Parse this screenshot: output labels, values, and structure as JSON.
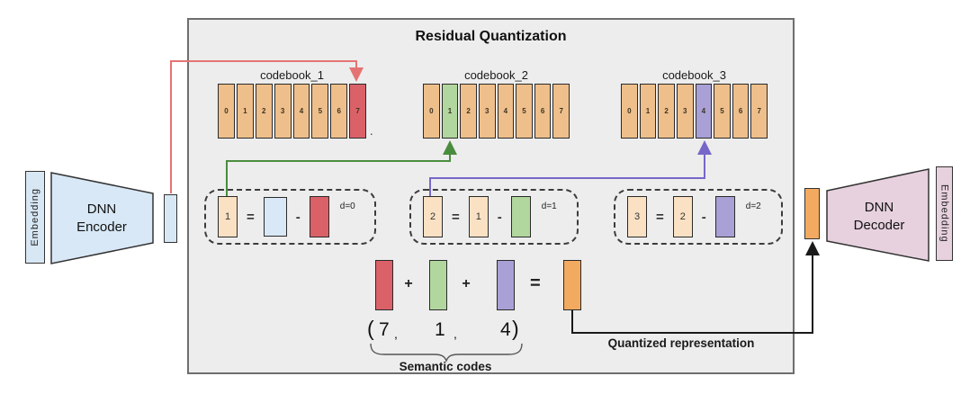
{
  "title": "Residual Quantization",
  "encoder": {
    "embedding": "Embedding",
    "name": "DNN\nEncoder"
  },
  "decoder": {
    "name": "DNN\nDecoder",
    "embedding": "Embedding"
  },
  "codebooks": [
    {
      "name": "codebook_1",
      "cells": [
        "0",
        "1",
        "2",
        "3",
        "4",
        "5",
        "6",
        "7"
      ],
      "selected_index": 7,
      "selected_color": "#db6168"
    },
    {
      "name": "codebook_2",
      "cells": [
        "0",
        "1",
        "2",
        "3",
        "4",
        "5",
        "6",
        "7"
      ],
      "selected_index": 1,
      "selected_color": "#b1d79e"
    },
    {
      "name": "codebook_3",
      "cells": [
        "0",
        "1",
        "2",
        "3",
        "4",
        "5",
        "6",
        "7"
      ],
      "selected_index": 4,
      "selected_color": "#a9a0d6"
    }
  ],
  "equations": [
    {
      "result": "1",
      "minuend": "",
      "subtrahend": "",
      "depth": "d=0"
    },
    {
      "result": "2",
      "minuend": "1",
      "subtrahend": "",
      "depth": "d=1"
    },
    {
      "result": "3",
      "minuend": "2",
      "subtrahend": "",
      "depth": "d=2"
    }
  ],
  "symbols": {
    "equals": "=",
    "minus": "-",
    "plus": "+"
  },
  "semantic": {
    "open_paren": "(",
    "close_paren": ")",
    "comma": ",",
    "codes": [
      "7",
      "1",
      "4"
    ],
    "label": "Semantic codes"
  },
  "quantized_label": "Quantized representation",
  "misc": {
    "stray_dot": "."
  },
  "colors": {
    "panel_bg": "#ededed",
    "cell_orange": "#efbf8b",
    "red": "#db6168",
    "green": "#b1d79e",
    "purple": "#a9a0d6",
    "orange": "#f2aa60",
    "peach": "#fbe1c4",
    "light_blue": "#d8e8f6",
    "pink": "#e7d1de",
    "arrow_red": "#e57373",
    "arrow_green": "#4a8c3f",
    "arrow_purple": "#7767c8",
    "arrow_black": "#1a1a1a"
  }
}
